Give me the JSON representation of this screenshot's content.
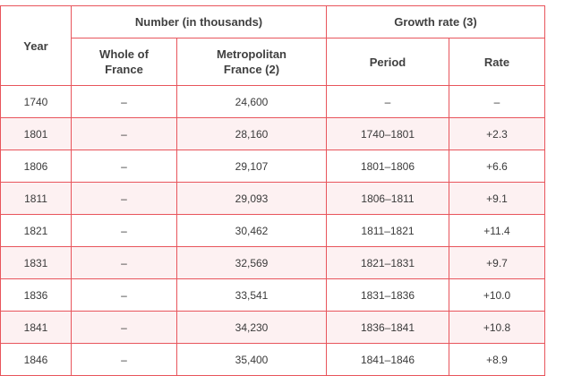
{
  "table": {
    "headers": {
      "year": "Year",
      "number_group": "Number (in thousands)",
      "whole_line1": "Whole of",
      "whole_line2": "France",
      "metro_line1": "Metropolitan",
      "metro_line2": "France (2)",
      "growth_group": "Growth rate (3)",
      "period": "Period",
      "rate": "Rate"
    },
    "rows": [
      {
        "year": "1740",
        "whole": "–",
        "metro": "24,600",
        "period": "–",
        "rate": "–"
      },
      {
        "year": "1801",
        "whole": "–",
        "metro": "28,160",
        "period": "1740–1801",
        "rate": "+2.3"
      },
      {
        "year": "1806",
        "whole": "–",
        "metro": "29,107",
        "period": "1801–1806",
        "rate": "+6.6"
      },
      {
        "year": "1811",
        "whole": "–",
        "metro": "29,093",
        "period": "1806–1811",
        "rate": "+9.1"
      },
      {
        "year": "1821",
        "whole": "–",
        "metro": "30,462",
        "period": "1811–1821",
        "rate": "+11.4"
      },
      {
        "year": "1831",
        "whole": "–",
        "metro": "32,569",
        "period": "1821–1831",
        "rate": "+9.7"
      },
      {
        "year": "1836",
        "whole": "–",
        "metro": "33,541",
        "period": "1831–1836",
        "rate": "+10.0"
      },
      {
        "year": "1841",
        "whole": "–",
        "metro": "34,230",
        "period": "1836–1841",
        "rate": "+10.8"
      },
      {
        "year": "1846",
        "whole": "–",
        "metro": "35,400",
        "period": "1841–1846",
        "rate": "+8.9"
      }
    ]
  },
  "colors": {
    "border": "#e8555c",
    "alt_row": "#fdf1f2",
    "text": "#3a3a3a"
  }
}
